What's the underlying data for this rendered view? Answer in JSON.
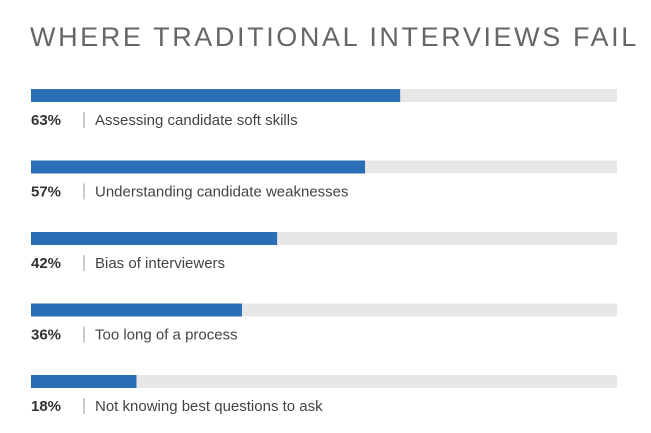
{
  "chart_data": {
    "type": "bar",
    "title": "WHERE TRADITIONAL INTERVIEWS FAIL",
    "categories": [
      "Assessing candidate soft skills",
      "Understanding candidate weaknesses",
      "Bias of interviewers",
      "Too long of a process",
      "Not knowing best questions to ask"
    ],
    "values": [
      63,
      57,
      42,
      36,
      18
    ],
    "value_labels": [
      "63%",
      "57%",
      "42%",
      "36%",
      "18%"
    ],
    "color": "#2a6fb6",
    "xlim": [
      0,
      100
    ]
  }
}
